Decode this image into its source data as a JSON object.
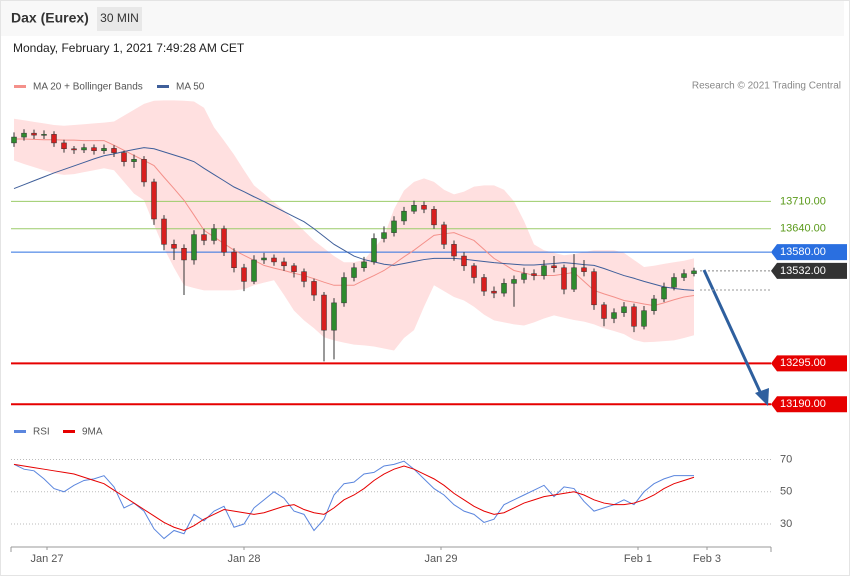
{
  "header": {
    "title": "Dax (Eurex)",
    "timeframe": "30 MIN",
    "datetime": "Monday, February 1, 2021 7:49:28 AM CET"
  },
  "chart_data": [
    {
      "type": "candlestick",
      "annotation": "Research © 2021 Trading Central",
      "up_color": "#2e8b2e",
      "down_color": "#d81f1f",
      "open": [
        13860,
        13875,
        13885,
        13880,
        13882,
        13860,
        13845,
        13842,
        13848,
        13840,
        13846,
        13835,
        13812,
        13818,
        13760,
        13665,
        13600,
        13590,
        13560,
        13625,
        13610,
        13640,
        13580,
        13540,
        13505,
        13560,
        13565,
        13555,
        13545,
        13530,
        13505,
        13470,
        13380,
        13450,
        13515,
        13540,
        13555,
        13615,
        13630,
        13660,
        13685,
        13700,
        13690,
        13650,
        13600,
        13570,
        13545,
        13515,
        13480,
        13475,
        13500,
        13510,
        13525,
        13520,
        13545,
        13540,
        13485,
        13540,
        13530,
        13445,
        13410,
        13425,
        13440,
        13390,
        13430,
        13460,
        13490,
        13515,
        13525
      ],
      "high": [
        13887,
        13895,
        13894,
        13892,
        13890,
        13868,
        13852,
        13858,
        13856,
        13856,
        13854,
        13840,
        13830,
        13826,
        13768,
        13675,
        13612,
        13600,
        13636,
        13640,
        13652,
        13648,
        13590,
        13550,
        13572,
        13578,
        13574,
        13566,
        13552,
        13538,
        13512,
        13478,
        13462,
        13528,
        13552,
        13568,
        13628,
        13646,
        13672,
        13696,
        13712,
        13710,
        13698,
        13658,
        13610,
        13580,
        13552,
        13524,
        13492,
        13512,
        13520,
        13540,
        13536,
        13560,
        13570,
        13548,
        13575,
        13560,
        13538,
        13452,
        13436,
        13452,
        13448,
        13442,
        13470,
        13502,
        13526,
        13536,
        13540
      ],
      "low": [
        13850,
        13866,
        13870,
        13870,
        13850,
        13835,
        13832,
        13834,
        13830,
        13832,
        13824,
        13800,
        13796,
        13748,
        13650,
        13585,
        13560,
        13470,
        13548,
        13598,
        13600,
        13570,
        13528,
        13480,
        13498,
        13550,
        13545,
        13532,
        13515,
        13490,
        13455,
        13300,
        13305,
        13440,
        13505,
        13530,
        13548,
        13605,
        13620,
        13650,
        13678,
        13680,
        13640,
        13588,
        13558,
        13532,
        13500,
        13468,
        13462,
        13466,
        13440,
        13500,
        13508,
        13510,
        13528,
        13472,
        13478,
        13518,
        13432,
        13390,
        13398,
        13414,
        13375,
        13382,
        13420,
        13452,
        13482,
        13506,
        13518
      ],
      "close": [
        13875,
        13885,
        13880,
        13882,
        13860,
        13845,
        13842,
        13848,
        13840,
        13846,
        13835,
        13812,
        13818,
        13760,
        13665,
        13600,
        13590,
        13560,
        13625,
        13610,
        13640,
        13580,
        13540,
        13505,
        13560,
        13565,
        13555,
        13545,
        13530,
        13505,
        13470,
        13380,
        13450,
        13515,
        13540,
        13555,
        13615,
        13630,
        13660,
        13685,
        13700,
        13690,
        13650,
        13600,
        13570,
        13545,
        13515,
        13480,
        13475,
        13500,
        13510,
        13525,
        13520,
        13545,
        13540,
        13485,
        13540,
        13530,
        13445,
        13410,
        13425,
        13440,
        13390,
        13430,
        13460,
        13490,
        13515,
        13525,
        13532
      ],
      "series": [
        {
          "name": "MA 20 + Bollinger Bands",
          "color": "#f4908a",
          "band_color": "#ffe0e0",
          "values": [
            13870,
            13870,
            13869,
            13868,
            13868,
            13867,
            13867,
            13866,
            13866,
            13866,
            13854,
            13841,
            13828,
            13815,
            13802,
            13772,
            13743,
            13713,
            13675,
            13636,
            13619,
            13602,
            13585,
            13572,
            13559,
            13546,
            13539,
            13533,
            13526,
            13520,
            13512,
            13503,
            13495,
            13495,
            13495,
            13508,
            13520,
            13533,
            13550,
            13568,
            13585,
            13604,
            13623,
            13627,
            13630,
            13620,
            13610,
            13587,
            13564,
            13549,
            13533,
            13527,
            13520,
            13520,
            13520,
            13524,
            13528,
            13505,
            13482,
            13473,
            13465,
            13456,
            13452,
            13447,
            13443,
            13450,
            13458,
            13465,
            13469
          ],
          "upper": [
            13922,
            13918,
            13914,
            13910,
            13906,
            13904,
            13906,
            13908,
            13910,
            13912,
            13915,
            13930,
            13945,
            13960,
            13968,
            13969,
            13969,
            13968,
            13966,
            13950,
            13900,
            13866,
            13830,
            13790,
            13751,
            13730,
            13708,
            13687,
            13660,
            13635,
            13610,
            13590,
            13570,
            13554,
            13554,
            13560,
            13590,
            13620,
            13690,
            13738,
            13760,
            13769,
            13760,
            13740,
            13728,
            13735,
            13748,
            13751,
            13751,
            13740,
            13710,
            13660,
            13600,
            13585,
            13578,
            13572,
            13575,
            13580,
            13585,
            13585,
            13585,
            13578,
            13560,
            13542,
            13545,
            13550,
            13554,
            13558,
            13564
          ],
          "lower": [
            13815,
            13806,
            13798,
            13790,
            13782,
            13778,
            13780,
            13785,
            13790,
            13795,
            13790,
            13760,
            13730,
            13713,
            13650,
            13590,
            13540,
            13495,
            13488,
            13482,
            13482,
            13482,
            13482,
            13485,
            13495,
            13502,
            13508,
            13470,
            13430,
            13405,
            13385,
            13362,
            13354,
            13348,
            13343,
            13341,
            13338,
            13333,
            13328,
            13360,
            13380,
            13440,
            13495,
            13480,
            13465,
            13456,
            13440,
            13420,
            13405,
            13400,
            13395,
            13392,
            13400,
            13410,
            13418,
            13412,
            13406,
            13402,
            13395,
            13385,
            13378,
            13370,
            13355,
            13349,
            13350,
            13352,
            13354,
            13360,
            13367
          ]
        },
        {
          "name": "MA 50",
          "color": "#3f5f9a",
          "values": [
            13743,
            13753,
            13763,
            13773,
            13783,
            13792,
            13801,
            13810,
            13819,
            13827,
            13832,
            13838,
            13843,
            13848,
            13845,
            13837,
            13829,
            13821,
            13812,
            13795,
            13779,
            13763,
            13747,
            13735,
            13722,
            13710,
            13697,
            13684,
            13671,
            13658,
            13640,
            13620,
            13600,
            13585,
            13570,
            13561,
            13555,
            13549,
            13546,
            13551,
            13556,
            13561,
            13564,
            13564,
            13564,
            13562,
            13559,
            13556,
            13553,
            13551,
            13549,
            13547,
            13547,
            13549,
            13551,
            13553,
            13551,
            13548,
            13546,
            13538,
            13529,
            13520,
            13513,
            13505,
            13498,
            13491,
            13487,
            13484,
            13482
          ]
        }
      ],
      "levels": [
        {
          "value": 13710,
          "label": "13710.00",
          "color": "#9ccc6a",
          "style": "text"
        },
        {
          "value": 13640,
          "label": "13640.00",
          "color": "#9ccc6a",
          "style": "text"
        },
        {
          "value": 13580,
          "label": "13580.00",
          "color": "#2a6fe0",
          "style": "box"
        },
        {
          "value": 13532,
          "label": "13532.00",
          "color": "#333333",
          "style": "box"
        },
        {
          "value": 13295,
          "label": "13295.00",
          "color": "#e60000",
          "style": "box"
        },
        {
          "value": 13190,
          "label": "13190.00",
          "color": "#e60000",
          "style": "box"
        }
      ],
      "xlim": [
        -0.3,
        75.7
      ],
      "ylim": [
        13160,
        13970
      ]
    },
    {
      "type": "line",
      "series": [
        {
          "name": "RSI",
          "color": "#5b86de",
          "values": [
            67,
            64,
            63,
            58,
            52,
            50,
            54,
            57,
            58,
            60,
            53,
            40,
            43,
            38,
            27,
            21,
            26,
            24,
            36,
            32,
            38,
            41,
            28,
            30,
            40,
            45,
            50,
            46,
            38,
            36,
            26,
            33,
            48,
            55,
            56,
            61,
            62,
            66,
            67,
            69,
            64,
            58,
            52,
            48,
            42,
            38,
            36,
            31,
            33,
            42,
            45,
            48,
            51,
            54,
            47,
            53,
            52,
            44,
            38,
            40,
            42,
            45,
            42,
            50,
            55,
            58,
            60,
            60,
            60
          ]
        },
        {
          "name": "9MA",
          "color": "#e60000",
          "values": [
            67,
            66,
            65,
            64,
            63,
            62,
            61,
            59,
            57,
            55,
            51,
            47,
            43,
            39,
            35,
            31,
            28,
            26,
            29,
            33,
            36,
            39,
            38,
            37,
            36,
            37,
            39,
            41,
            42,
            39,
            37,
            36,
            40,
            45,
            48,
            52,
            57,
            61,
            64,
            66,
            64,
            61,
            58,
            54,
            49,
            45,
            41,
            38,
            36,
            37,
            40,
            43,
            45,
            47,
            48,
            49,
            50,
            48,
            45,
            43,
            42,
            42,
            43,
            45,
            48,
            52,
            55,
            57,
            59
          ]
        }
      ],
      "xlim": [
        -0.3,
        75.7
      ],
      "ylim": [
        17,
        79
      ],
      "yticks": [
        30,
        50,
        70
      ],
      "grid": true,
      "xticks": [
        {
          "value": 3.3,
          "label": "Jan 27"
        },
        {
          "value": 23,
          "label": "Jan 28"
        },
        {
          "value": 42.7,
          "label": "Jan 29"
        },
        {
          "value": 62.4,
          "label": "Feb 1"
        },
        {
          "value": 69.3,
          "label": "Feb 3"
        }
      ]
    }
  ]
}
